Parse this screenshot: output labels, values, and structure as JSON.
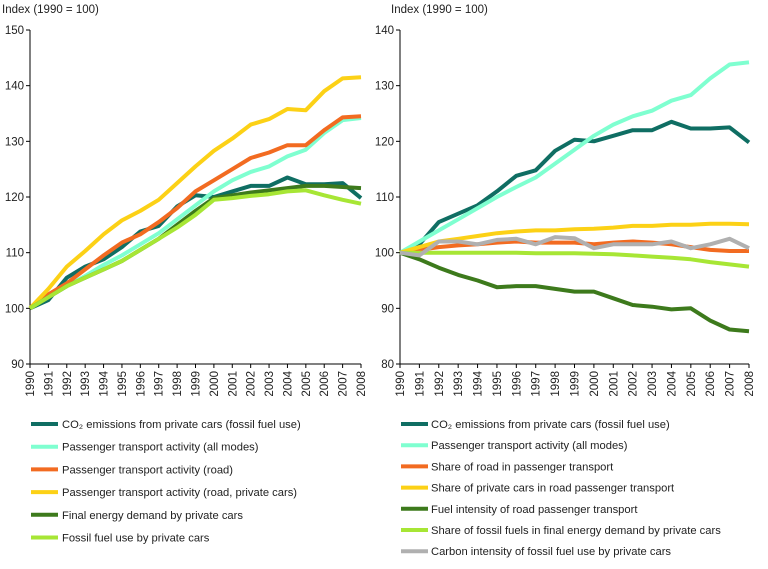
{
  "charts": [
    {
      "ylabel": "Index (1990 = 100)",
      "legend": [
        "CO₂ emissions from private cars (fossil fuel use)",
        "Passenger transport activity (all modes)",
        "Passenger transport activity (road)",
        "Passenger transport activity (road, private cars)",
        "Final energy demand by private cars",
        "Fossil fuel use by private cars"
      ]
    },
    {
      "ylabel": "Index (1990 = 100)",
      "legend": [
        "CO₂ emissions from private cars (fossil fuel use)",
        "Passenger transport activity (all modes)",
        "Share of road in passenger transport",
        "Share of private cars in road passenger transport",
        "Fuel intensity of road passenger transport",
        "Share of fossil fuels in final energy demand by private cars",
        "Carbon intensity of fossil fuel use by private cars"
      ]
    }
  ],
  "chart_data": [
    {
      "type": "line",
      "ylabel": "Index (1990 = 100)",
      "ylim": [
        90,
        150
      ],
      "yticks": [
        90,
        100,
        110,
        120,
        130,
        140,
        150
      ],
      "x": [
        "1990",
        "1991",
        "1992",
        "1993",
        "1994",
        "1995",
        "1996",
        "1997",
        "1998",
        "1999",
        "2000",
        "2001",
        "2002",
        "2003",
        "2004",
        "2005",
        "2006",
        "2007",
        "2008"
      ],
      "grid": false,
      "legend_position": "bottom",
      "series": [
        {
          "name": "CO₂ emissions from private cars (fossil fuel use)",
          "color": "#0f6e63",
          "values": [
            100,
            101.5,
            105.5,
            107.5,
            108.8,
            111,
            113.8,
            114.8,
            118.3,
            120.3,
            120,
            121,
            122,
            122,
            123.5,
            122.3,
            122.3,
            122.5,
            119.8
          ]
        },
        {
          "name": "Passenger transport activity (all modes)",
          "color": "#7fffd0",
          "values": [
            100,
            102,
            104,
            105.8,
            107.8,
            109.5,
            111.5,
            113.5,
            116,
            118.5,
            121,
            123,
            124.5,
            125.5,
            127.3,
            128.5,
            131.5,
            133.8,
            134.2
          ]
        },
        {
          "name": "Passenger transport activity (road)",
          "color": "#f26b21",
          "values": [
            100,
            102.5,
            104.5,
            107,
            109.5,
            111.8,
            113.3,
            115.5,
            118,
            121,
            123,
            125,
            127,
            128,
            129.3,
            129.3,
            132,
            134.3,
            134.5
          ]
        },
        {
          "name": "Passenger transport activity (road, private cars)",
          "color": "#fcd116",
          "values": [
            100,
            103.5,
            107.5,
            110.3,
            113.3,
            115.8,
            117.5,
            119.5,
            122.5,
            125.5,
            128.3,
            130.5,
            133,
            134,
            135.8,
            135.6,
            139,
            141.3,
            141.5
          ]
        },
        {
          "name": "Final energy demand by private cars",
          "color": "#3d7a1c",
          "values": [
            100,
            102,
            104,
            105.5,
            107,
            108.5,
            110.5,
            112.5,
            115,
            117.5,
            119.8,
            120.3,
            120.8,
            121.2,
            121.6,
            122,
            122,
            121.8,
            121.6
          ]
        },
        {
          "name": "Fossil fuel use by private cars",
          "color": "#a7e635",
          "values": [
            100,
            102,
            104,
            105.5,
            107,
            108.5,
            110.5,
            112.5,
            114.5,
            116.8,
            119.5,
            119.8,
            120.2,
            120.5,
            121,
            121.2,
            120.3,
            119.5,
            118.8
          ]
        }
      ]
    },
    {
      "type": "line",
      "ylabel": "Index (1990 = 100)",
      "ylim": [
        80,
        140
      ],
      "yticks": [
        80,
        90,
        100,
        110,
        120,
        130,
        140
      ],
      "x": [
        "1990",
        "1991",
        "1992",
        "1993",
        "1994",
        "1995",
        "1996",
        "1997",
        "1998",
        "1999",
        "2000",
        "2001",
        "2002",
        "2003",
        "2004",
        "2005",
        "2006",
        "2007",
        "2008"
      ],
      "grid": false,
      "legend_position": "bottom",
      "series": [
        {
          "name": "CO₂ emissions from private cars (fossil fuel use)",
          "color": "#0f6e63",
          "values": [
            100,
            101.5,
            105.5,
            107,
            108.5,
            111,
            113.8,
            114.8,
            118.3,
            120.3,
            120,
            121,
            122,
            122,
            123.5,
            122.3,
            122.3,
            122.5,
            119.8
          ]
        },
        {
          "name": "Passenger transport activity (all modes)",
          "color": "#7fffd0",
          "values": [
            100,
            102,
            104,
            106,
            108,
            110,
            111.8,
            113.5,
            116,
            118.5,
            121,
            123,
            124.5,
            125.5,
            127.3,
            128.3,
            131.3,
            133.8,
            134.2
          ]
        },
        {
          "name": "Share of road in passenger transport",
          "color": "#f26b21",
          "values": [
            100,
            100.5,
            101,
            101.3,
            101.5,
            101.8,
            102,
            101.8,
            101.8,
            101.8,
            101.5,
            101.8,
            102,
            101.8,
            101.5,
            101,
            100.5,
            100.3,
            100.3
          ]
        },
        {
          "name": "Share of private cars in road passenger transport",
          "color": "#fcd116",
          "values": [
            100,
            101,
            102,
            102.5,
            103,
            103.5,
            103.8,
            104,
            104,
            104.2,
            104.3,
            104.5,
            104.8,
            104.8,
            105,
            105,
            105.2,
            105.2,
            105.1
          ]
        },
        {
          "name": "Fuel intensity of road passenger transport",
          "color": "#3d7a1c",
          "values": [
            100,
            98.8,
            97.3,
            96,
            95,
            93.8,
            94,
            94,
            93.5,
            93,
            93,
            91.8,
            90.6,
            90.3,
            89.8,
            90,
            87.8,
            86.2,
            85.9
          ]
        },
        {
          "name": "Share of fossil fuels in final energy demand by private cars",
          "color": "#a7e635",
          "values": [
            100,
            100,
            100,
            100,
            100,
            100,
            100,
            99.9,
            99.9,
            99.9,
            99.8,
            99.7,
            99.5,
            99.3,
            99.1,
            98.8,
            98.3,
            97.9,
            97.5
          ]
        },
        {
          "name": "Carbon intensity of fossil fuel use by private cars",
          "color": "#b0b0b0",
          "values": [
            100,
            99.5,
            102,
            102,
            101.5,
            102.3,
            102.5,
            101.5,
            102.8,
            102.6,
            100.8,
            101.5,
            101.5,
            101.5,
            102,
            100.8,
            101.5,
            102.5,
            100.8
          ]
        }
      ]
    }
  ]
}
